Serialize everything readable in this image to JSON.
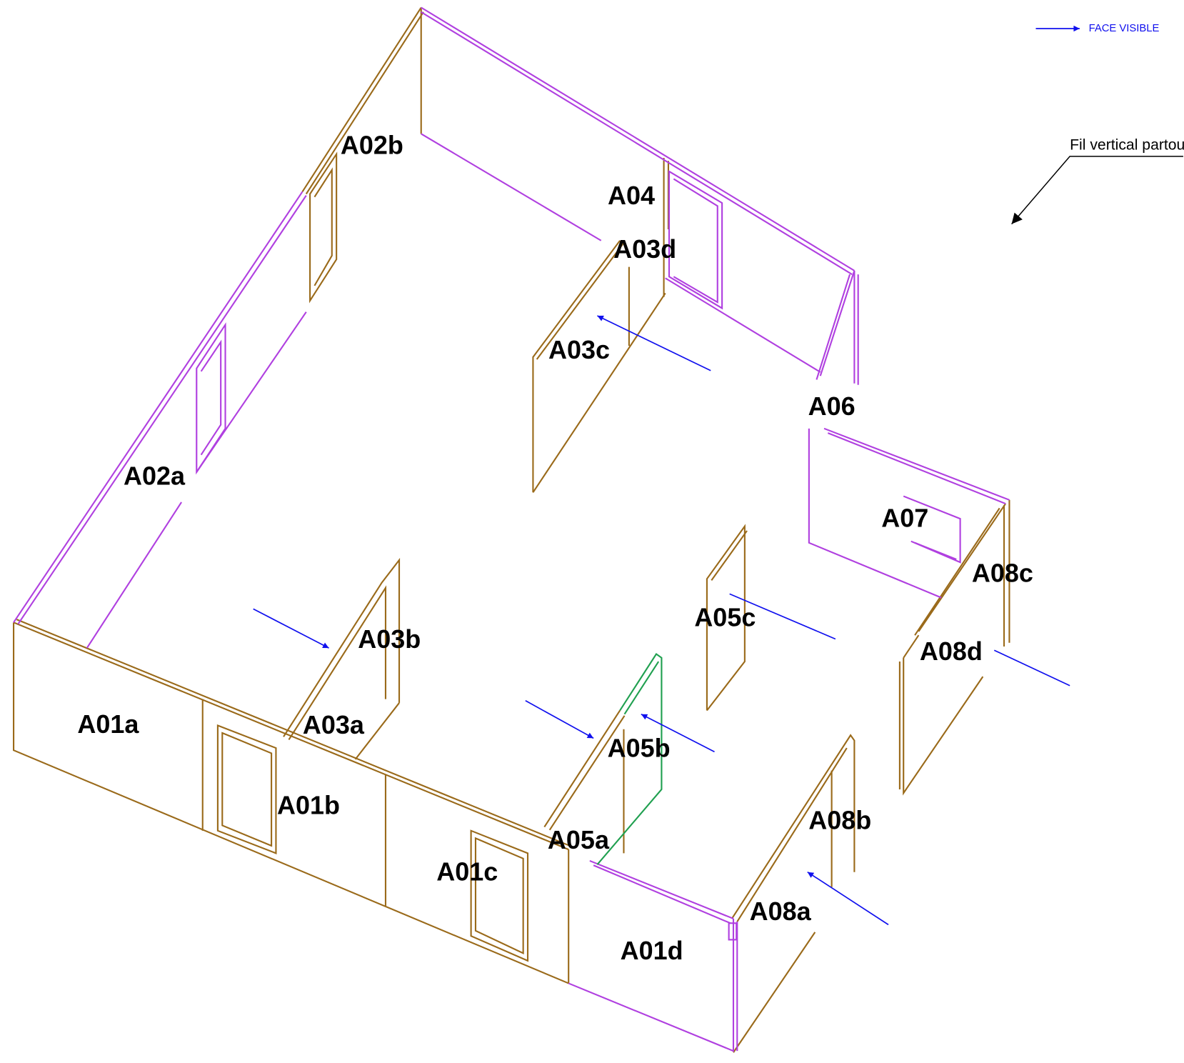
{
  "legend": {
    "label": "FACE VISIBLE"
  },
  "note": "Fil vertical partout",
  "panels": [
    "A02b",
    "A04",
    "A03d",
    "A03c",
    "A06",
    "A02a",
    "A07",
    "A08c",
    "A05c",
    "A03b",
    "A08d",
    "A01a",
    "A03a",
    "A05b",
    "A01b",
    "A08b",
    "A05a",
    "A01c",
    "A08a",
    "A01d"
  ]
}
